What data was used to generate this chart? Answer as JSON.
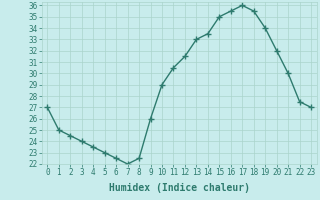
{
  "x": [
    0,
    1,
    2,
    3,
    4,
    5,
    6,
    7,
    8,
    9,
    10,
    11,
    12,
    13,
    14,
    15,
    16,
    17,
    18,
    19,
    20,
    21,
    22,
    23
  ],
  "y": [
    27.0,
    25.0,
    24.5,
    24.0,
    23.5,
    23.0,
    22.5,
    22.0,
    22.5,
    26.0,
    29.0,
    30.5,
    31.5,
    33.0,
    33.5,
    35.0,
    35.5,
    36.0,
    35.5,
    34.0,
    32.0,
    30.0,
    27.5,
    27.0
  ],
  "line_color": "#2e7b6e",
  "marker": "+",
  "markersize": 4,
  "linewidth": 1.0,
  "bg_color": "#c8ecec",
  "grid_color": "#aad4cc",
  "xlabel": "Humidex (Indice chaleur)",
  "ylim": [
    22,
    36
  ],
  "xlim": [
    -0.5,
    23.5
  ],
  "xtick_labels": [
    "0",
    "1",
    "2",
    "3",
    "4",
    "5",
    "6",
    "7",
    "8",
    "9",
    "10",
    "11",
    "12",
    "13",
    "14",
    "15",
    "16",
    "17",
    "18",
    "19",
    "20",
    "21",
    "22",
    "23"
  ],
  "title_color": "#2e7b6e",
  "xlabel_fontsize": 7,
  "tick_fontsize": 5.5
}
